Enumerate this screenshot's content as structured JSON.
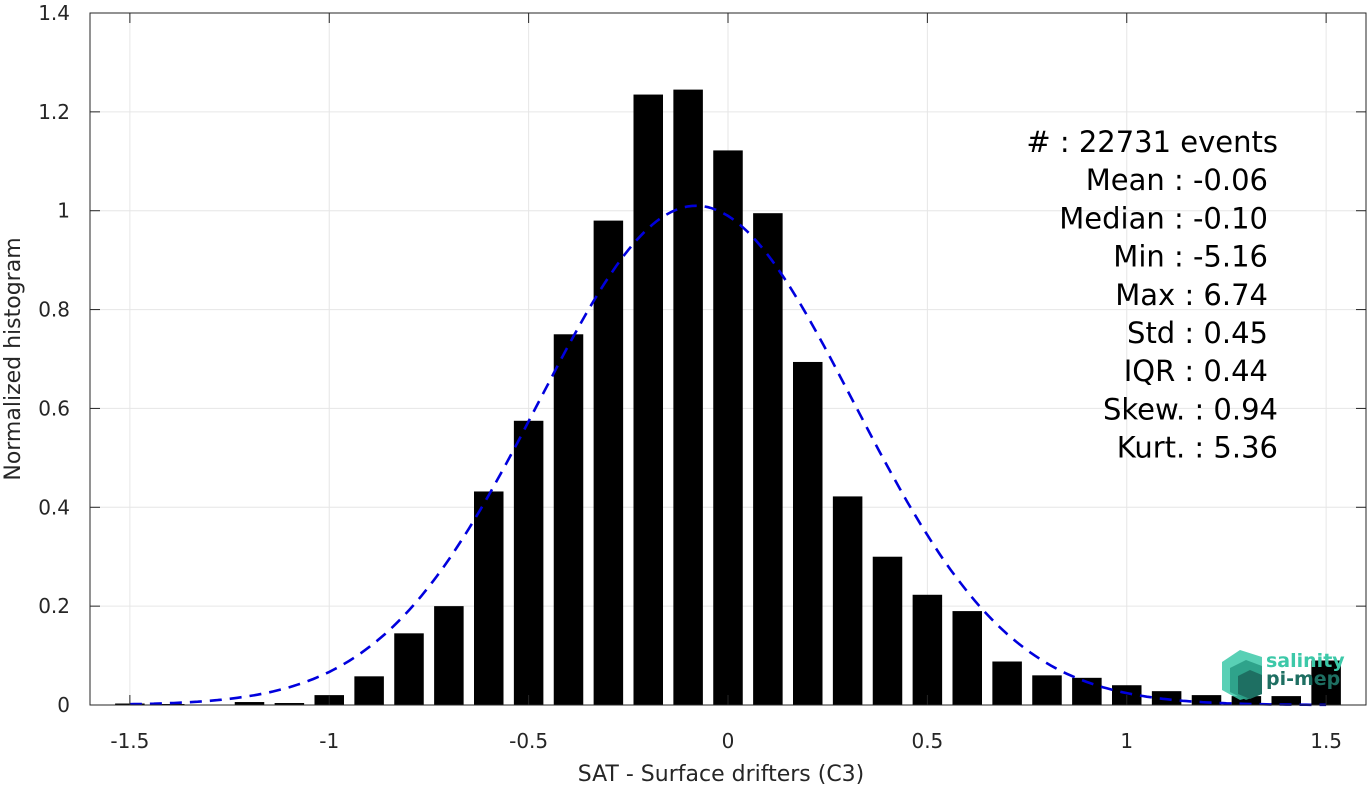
{
  "chart_data": {
    "type": "bar",
    "xlabel": "SAT - Surface drifters (C3)",
    "ylabel": "Normalized histogram",
    "xlim": [
      -1.6,
      1.6
    ],
    "ylim": [
      0,
      1.4
    ],
    "xticks": [
      -1.5,
      -1,
      -0.5,
      0,
      0.5,
      1,
      1.5
    ],
    "xtick_labels": [
      "-1.5",
      "-1",
      "-0.5",
      "0",
      "0.5",
      "1",
      "1.5"
    ],
    "yticks": [
      0,
      0.2,
      0.4,
      0.6,
      0.8,
      1,
      1.2,
      1.4
    ],
    "ytick_labels": [
      "0",
      "0.2",
      "0.4",
      "0.6",
      "0.8",
      "1",
      "1.2",
      "1.4"
    ],
    "grid": true,
    "bar_color": "#000000",
    "fit_color": "#0000dd",
    "bars": {
      "x": [
        -1.5,
        -1.4,
        -1.3,
        -1.2,
        -1.1,
        -1.0,
        -0.9,
        -0.8,
        -0.7,
        -0.6,
        -0.5,
        -0.4,
        -0.3,
        -0.2,
        -0.1,
        0.0,
        0.1,
        0.2,
        0.3,
        0.4,
        0.5,
        0.6,
        0.7,
        0.8,
        0.9,
        1.0,
        1.1,
        1.2,
        1.3,
        1.4,
        1.5
      ],
      "values": [
        0.003,
        0.002,
        0.001,
        0.006,
        0.004,
        0.02,
        0.058,
        0.145,
        0.2,
        0.432,
        0.575,
        0.75,
        0.98,
        1.235,
        1.245,
        1.122,
        0.995,
        0.694,
        0.422,
        0.3,
        0.223,
        0.19,
        0.088,
        0.06,
        0.055,
        0.04,
        0.028,
        0.02,
        0.018,
        0.018,
        0.09
      ]
    },
    "fit_curve": {
      "style": "dashed",
      "mean": -0.08,
      "std": 0.395,
      "x_range": [
        -1.5,
        1.5
      ]
    },
    "stats": [
      {
        "label": "#  ",
        "value": ": 22731 events"
      },
      {
        "label": "Mean ",
        "value": ": -0.06"
      },
      {
        "label": "Median ",
        "value": ": -0.10"
      },
      {
        "label": "Min ",
        "value": ": -5.16"
      },
      {
        "label": "Max ",
        "value": ": 6.74"
      },
      {
        "label": "Std ",
        "value": ": 0.45"
      },
      {
        "label": "IQR ",
        "value": ": 0.44"
      },
      {
        "label": "Skew. ",
        "value": ": 0.94"
      },
      {
        "label": "Kurt. ",
        "value": ": 5.36"
      }
    ]
  },
  "logo": {
    "line1": "salinity",
    "line2": "pi-mep",
    "color_light": "#3cc8a8",
    "color_dark": "#1e6f62"
  }
}
